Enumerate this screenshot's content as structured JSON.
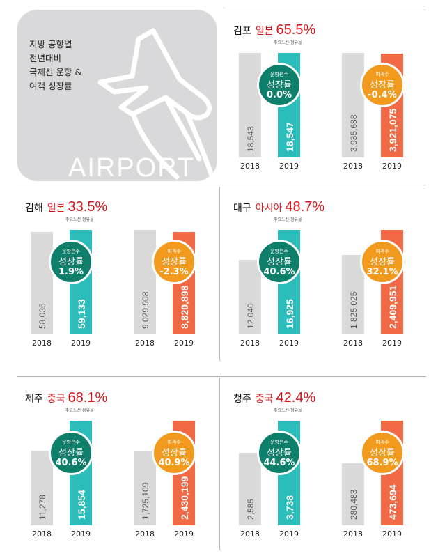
{
  "header": {
    "title": "지방 공항별\n전년대비\n국제선 운항 &\n여객 성장률",
    "tile_word": "AIRPORT"
  },
  "labels": {
    "flights_top": "운항편수",
    "passengers_top": "여객수",
    "growth": "성장률"
  },
  "colors": {
    "gray_bar": "#d9d9d9",
    "teal_bar": "#2bbdba",
    "orange_bar": "#f26a45",
    "green_badge": "#0d7f6b",
    "orange_badge": "#f29a1e",
    "accent_red": "#d7141a"
  },
  "chart_data": [
    {
      "type": "bar",
      "airport": "김포",
      "top_region": "일본",
      "share": "65.5%",
      "share_note": "주요노선 점유율",
      "categories": [
        "2018",
        "2019"
      ],
      "series": [
        {
          "name": "운항편수",
          "values": [
            18543,
            18547
          ],
          "labels": [
            "18,543",
            "18,547"
          ],
          "growth": "0.0%"
        },
        {
          "name": "여객수",
          "values": [
            3935688,
            3921075
          ],
          "labels": [
            "3,935,688",
            "3,921,075"
          ],
          "growth": "-0.4%"
        }
      ]
    },
    {
      "type": "bar",
      "airport": "김해",
      "top_region": "일본",
      "share": "33.5%",
      "share_note": "주요노선 점유율",
      "categories": [
        "2018",
        "2019"
      ],
      "series": [
        {
          "name": "운항편수",
          "values": [
            58036,
            59133
          ],
          "labels": [
            "58,036",
            "59,133"
          ],
          "growth": "1.9%"
        },
        {
          "name": "여객수",
          "values": [
            9029908,
            8820898
          ],
          "labels": [
            "9,029,908",
            "8,820,898"
          ],
          "growth": "-2.3%"
        }
      ]
    },
    {
      "type": "bar",
      "airport": "대구",
      "top_region": "아시아",
      "share": "48.7%",
      "share_note": "주요노선 점유율",
      "categories": [
        "2018",
        "2019"
      ],
      "series": [
        {
          "name": "운항편수",
          "values": [
            12040,
            16925
          ],
          "labels": [
            "12,040",
            "16,925"
          ],
          "growth": "40.6%"
        },
        {
          "name": "여객수",
          "values": [
            1825025,
            2409951
          ],
          "labels": [
            "1,825,025",
            "2,409,951"
          ],
          "growth": "32.1%"
        }
      ]
    },
    {
      "type": "bar",
      "airport": "제주",
      "top_region": "중국",
      "share": "68.1%",
      "share_note": "주요노선 점유율",
      "categories": [
        "2018",
        "2019"
      ],
      "series": [
        {
          "name": "운항편수",
          "values": [
            11278,
            15854
          ],
          "labels": [
            "11,278",
            "15,854"
          ],
          "growth": "40.6%"
        },
        {
          "name": "여객수",
          "values": [
            1725109,
            2430199
          ],
          "labels": [
            "1,725,109",
            "2,430,199"
          ],
          "growth": "40.9%"
        }
      ]
    },
    {
      "type": "bar",
      "airport": "청주",
      "top_region": "중국",
      "share": "42.4%",
      "share_note": "주요노선 점유율",
      "categories": [
        "2018",
        "2019"
      ],
      "series": [
        {
          "name": "운항편수",
          "values": [
            2585,
            3738
          ],
          "labels": [
            "2,585",
            "3,738"
          ],
          "growth": "44.6%"
        },
        {
          "name": "여객수",
          "values": [
            280483,
            473694
          ],
          "labels": [
            "280,483",
            "473,694"
          ],
          "growth": "68.9%"
        }
      ]
    }
  ]
}
